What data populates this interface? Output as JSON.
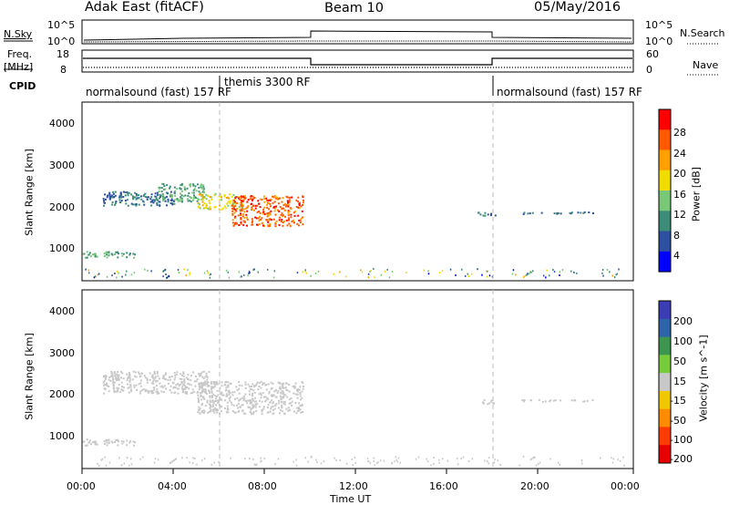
{
  "header": {
    "title": "Adak East (fitACF)",
    "beam": "Beam 10",
    "date": "05/May/2016"
  },
  "top_panels": {
    "nsky_label": "N.Sky",
    "nsky_ticks": [
      "10^5",
      "10^0"
    ],
    "nsearch_label": "N.Search",
    "nsearch_ticks": [
      "10^5",
      "10^0"
    ],
    "freq_label_1": "Freq.",
    "freq_label_2": "[MHz]",
    "freq_ticks": [
      "18",
      "8"
    ],
    "nave_label": "Nave",
    "nave_ticks": [
      "60",
      "0"
    ],
    "cpid_label": "CPID",
    "cpid_segments": [
      {
        "label": "normalsound (fast) 157 RF",
        "start_hour": 0,
        "end_hour": 6
      },
      {
        "label": "themis 3300 RF",
        "start_hour": 6,
        "end_hour": 18
      },
      {
        "label": "normalsound (fast) 157 RF",
        "start_hour": 18,
        "end_hour": 24
      }
    ]
  },
  "chart_data": [
    {
      "type": "heatmap",
      "title": "",
      "xlabel": "Time UT",
      "ylabel": "Slant Range [km]",
      "xlim": [
        0,
        24
      ],
      "ylim": [
        180,
        4600
      ],
      "x_ticks": [
        "00:00",
        "04:00",
        "08:00",
        "12:00",
        "16:00",
        "20:00",
        "00:00"
      ],
      "y_ticks": [
        "1000",
        "2000",
        "3000",
        "4000"
      ],
      "colorbar_label": "Power [dB]",
      "colorbar_ticks": [
        "28",
        "24",
        "20",
        "16",
        "12",
        "8",
        "4"
      ],
      "colorbar_colors": [
        "#ff0000",
        "#ff5a00",
        "#ffa000",
        "#f0dc00",
        "#78c878",
        "#3c8c78",
        "#2d50a0",
        "#0000ff"
      ],
      "regions": [
        {
          "time": [
            0.0,
            2.3
          ],
          "range": [
            760,
            920
          ],
          "value": 10
        },
        {
          "time": [
            0.9,
            4.0
          ],
          "range": [
            2050,
            2400
          ],
          "value": 6
        },
        {
          "time": [
            3.3,
            5.3
          ],
          "range": [
            2150,
            2600
          ],
          "value": 10
        },
        {
          "time": [
            5.0,
            7.0
          ],
          "range": [
            1950,
            2350
          ],
          "value": 16
        },
        {
          "time": [
            6.5,
            9.6
          ],
          "range": [
            1550,
            2300
          ],
          "value": 24
        },
        {
          "time": [
            17.2,
            18.0
          ],
          "range": [
            1800,
            1900
          ],
          "value": 6
        },
        {
          "time": [
            19.0,
            22.3
          ],
          "range": [
            1850,
            1900
          ],
          "value": 6
        }
      ]
    },
    {
      "type": "heatmap",
      "title": "",
      "xlabel": "Time UT",
      "ylabel": "Slant Range [km]",
      "xlim": [
        0,
        24
      ],
      "ylim": [
        180,
        4600
      ],
      "x_ticks": [
        "00:00",
        "04:00",
        "08:00",
        "12:00",
        "16:00",
        "20:00",
        "00:00"
      ],
      "y_ticks": [
        "1000",
        "2000",
        "3000",
        "4000"
      ],
      "colorbar_label": "Velocity [m s^-1]",
      "colorbar_ticks": [
        "200",
        "100",
        "50",
        "15",
        "-15",
        "-50",
        "-100",
        "-200"
      ],
      "colorbar_colors": [
        "#3c3cb4",
        "#2d64aa",
        "#3c9650",
        "#78cc3c",
        "#c8c8c8",
        "#f0c800",
        "#ff8c00",
        "#ff3c00",
        "#e60000"
      ],
      "regions": [
        {
          "time": [
            0.0,
            2.3
          ],
          "range": [
            760,
            920
          ],
          "value": 0
        },
        {
          "time": [
            0.9,
            5.5
          ],
          "range": [
            2050,
            2600
          ],
          "value": 0
        },
        {
          "time": [
            5.0,
            9.6
          ],
          "range": [
            1550,
            2350
          ],
          "value": 0
        },
        {
          "time": [
            17.2,
            18.0
          ],
          "range": [
            1800,
            1900
          ],
          "value": 0
        },
        {
          "time": [
            19.0,
            22.3
          ],
          "range": [
            1850,
            1900
          ],
          "value": 0
        }
      ]
    }
  ]
}
